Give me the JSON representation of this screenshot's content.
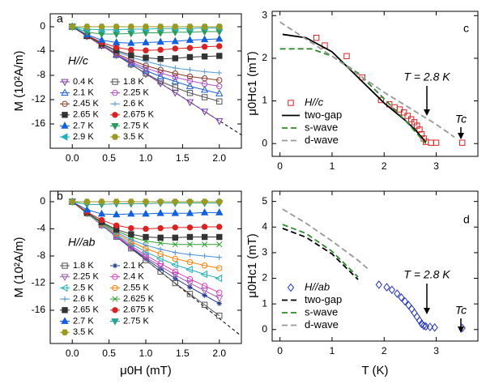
{
  "chart_data": [
    {
      "type": "line",
      "panel_label": "a",
      "ylabel": "M (10²A/m)",
      "annotations": [
        "H//c"
      ],
      "x": [
        0,
        0.2,
        0.4,
        0.6,
        0.8,
        1.0,
        1.2,
        1.4,
        1.6,
        1.8,
        2.0
      ],
      "xlim": [
        -0.3,
        2.3
      ],
      "xticks": [
        {
          "value": 0,
          "label": "0.0"
        },
        0.5,
        {
          "value": 1,
          "label": "1.0"
        },
        1.5,
        {
          "value": 2,
          "label": "2.0"
        }
      ],
      "ylim": [
        -20,
        2.13
      ],
      "yticks": [
        0,
        -4,
        -8,
        -12,
        -16
      ],
      "reference_line": {
        "x": [
          0,
          2.3
        ],
        "values": [
          0,
          -17.8
        ]
      },
      "series": [
        {
          "name": "0.4 K",
          "color": "#7b3fb5",
          "marker": "triangle-down",
          "filled": false,
          "values": [
            0,
            -1.55,
            -3.1,
            -4.65,
            -6.2,
            -7.75,
            -9.3,
            -10.85,
            -12.4,
            -13.95,
            -15.5
          ]
        },
        {
          "name": "1.8 K",
          "color": "#555555",
          "marker": "square",
          "filled": false,
          "values": [
            0,
            -1.55,
            -3.1,
            -4.65,
            -6.2,
            -7.7,
            -9.0,
            -10.0,
            -10.9,
            -11.6,
            -12.3
          ]
        },
        {
          "name": "2.1 K",
          "color": "#2060d0",
          "marker": "triangle-up",
          "filled": false,
          "values": [
            0,
            -1.55,
            -3.1,
            -4.6,
            -6.0,
            -7.2,
            -8.2,
            -9.0,
            -9.8,
            -10.4,
            -11.0
          ]
        },
        {
          "name": "2.25 K",
          "color": "#b050d0",
          "marker": "circle",
          "filled": false,
          "values": [
            0,
            -1.55,
            -3.1,
            -4.55,
            -5.8,
            -6.8,
            -7.6,
            -8.3,
            -8.9,
            -9.4,
            -9.8
          ]
        },
        {
          "name": "2.45 K",
          "color": "#8b3a2a",
          "marker": "circle",
          "filled": false,
          "values": [
            0,
            -1.55,
            -3.05,
            -4.4,
            -5.5,
            -6.4,
            -7.1,
            -7.7,
            -8.2,
            -8.5,
            -8.8
          ]
        },
        {
          "name": "2.6 K",
          "color": "#5a9bd5",
          "marker": "plus",
          "filled": false,
          "values": [
            0,
            -1.5,
            -2.9,
            -4.1,
            -5.0,
            -5.7,
            -6.3,
            -6.8,
            -7.1,
            -7.4,
            -7.6
          ]
        },
        {
          "name": "2.65 K",
          "color": "#333333",
          "marker": "square",
          "filled": true,
          "values": [
            0,
            -1.5,
            -2.8,
            -3.9,
            -4.7,
            -5.1,
            -5.3,
            -5.2,
            -5.0,
            -4.9,
            -4.8
          ]
        },
        {
          "name": "2.675 K",
          "color": "#e02020",
          "marker": "circle",
          "filled": true,
          "values": [
            0,
            -1.4,
            -2.6,
            -3.4,
            -3.8,
            -3.9,
            -3.8,
            -3.6,
            -3.5,
            -3.3,
            -3.2
          ]
        },
        {
          "name": "2.7 K",
          "color": "#1060e0",
          "marker": "triangle-up",
          "filled": true,
          "values": [
            0,
            -1.3,
            -2.2,
            -2.6,
            -2.7,
            -2.6,
            -2.5,
            -2.4,
            -2.2,
            -2.1,
            -2.0
          ]
        },
        {
          "name": "2.75 K",
          "color": "#2a9d5a",
          "marker": "triangle-down",
          "filled": true,
          "values": [
            0,
            -0.9,
            -1.2,
            -1.2,
            -1.1,
            -1.0,
            -1.0,
            -0.9,
            -0.9,
            -0.8,
            -0.8
          ]
        },
        {
          "name": "2.9 K",
          "color": "#20b0c0",
          "marker": "triangle-left",
          "filled": true,
          "values": [
            0,
            -0.4,
            -0.5,
            -0.5,
            -0.4,
            -0.4,
            -0.3,
            -0.3,
            -0.3,
            -0.2,
            -0.2
          ]
        },
        {
          "name": "3.5 K",
          "color": "#9a9a20",
          "marker": "hexagon",
          "filled": true,
          "values": [
            0,
            0,
            0,
            0,
            0,
            0,
            0,
            0,
            0,
            0,
            0
          ]
        }
      ]
    },
    {
      "type": "line",
      "panel_label": "b",
      "ylabel": "M (10²A/m)",
      "xlabel": "μ0H (mT)",
      "annotations": [
        "H//ab"
      ],
      "x": [
        0,
        0.2,
        0.4,
        0.6,
        0.8,
        1.0,
        1.2,
        1.4,
        1.6,
        1.8,
        2.0
      ],
      "xlim": [
        -0.3,
        2.3
      ],
      "xticks": [
        {
          "value": 0,
          "label": "0.0"
        },
        0.5,
        {
          "value": 1,
          "label": "1.0"
        },
        1.5,
        {
          "value": 2,
          "label": "2.0"
        }
      ],
      "ylim": [
        -20.9,
        1.55
      ],
      "yticks": [
        0,
        -4,
        -8,
        -12,
        -16
      ],
      "reference_line": {
        "x": [
          0,
          2.3
        ],
        "values": [
          0,
          -19.8
        ]
      },
      "series": [
        {
          "name": "1.8 K",
          "color": "#555555",
          "marker": "square",
          "filled": false,
          "values": [
            0,
            -1.72,
            -3.44,
            -5.16,
            -6.88,
            -8.6,
            -10.3,
            -12.0,
            -13.6,
            -15.2,
            -16.8
          ]
        },
        {
          "name": "2.1 K",
          "color": "#1f3a93",
          "marker": "star",
          "filled": false,
          "values": [
            0,
            -1.72,
            -3.44,
            -5.15,
            -6.8,
            -8.4,
            -9.9,
            -11.3,
            -12.6,
            -13.8,
            -15.0
          ]
        },
        {
          "name": "2.25 K",
          "color": "#9b59b6",
          "marker": "triangle-down",
          "filled": false,
          "values": [
            0,
            -1.72,
            -3.44,
            -5.1,
            -6.7,
            -8.2,
            -9.5,
            -10.8,
            -12.0,
            -13.1,
            -14.2
          ]
        },
        {
          "name": "2.4 K",
          "color": "#e040c0",
          "marker": "circle",
          "filled": false,
          "values": [
            0,
            -1.72,
            -3.4,
            -5.0,
            -6.5,
            -7.9,
            -9.1,
            -10.3,
            -11.4,
            -12.4,
            -13.4
          ]
        },
        {
          "name": "2.5 K",
          "color": "#20b0c0",
          "marker": "triangle-left",
          "filled": false,
          "values": [
            0,
            -1.72,
            -3.4,
            -4.9,
            -6.2,
            -7.4,
            -8.4,
            -9.3,
            -10.0,
            -10.7,
            -11.3
          ]
        },
        {
          "name": "2.55 K",
          "color": "#ff7f00",
          "marker": "circle",
          "filled": false,
          "values": [
            0,
            -1.7,
            -3.3,
            -4.7,
            -5.9,
            -6.9,
            -7.7,
            -8.4,
            -8.9,
            -9.4,
            -9.8
          ]
        },
        {
          "name": "2.6 K",
          "color": "#4a90d9",
          "marker": "plus",
          "filled": false,
          "values": [
            0,
            -1.7,
            -3.2,
            -4.5,
            -5.6,
            -6.4,
            -7.0,
            -7.5,
            -7.8,
            -8.0,
            -8.2
          ]
        },
        {
          "name": "2.625 K",
          "color": "#2ca02c",
          "marker": "x",
          "filled": false,
          "values": [
            0,
            -1.65,
            -3.1,
            -4.3,
            -5.2,
            -5.8,
            -6.1,
            -6.3,
            -6.3,
            -6.3,
            -6.3
          ]
        },
        {
          "name": "2.65 K",
          "color": "#333333",
          "marker": "square",
          "filled": true,
          "values": [
            0,
            -1.6,
            -3.0,
            -4.1,
            -4.8,
            -5.2,
            -5.3,
            -5.3,
            -5.2,
            -5.2,
            -5.2
          ]
        },
        {
          "name": "2.675 K",
          "color": "#e02020",
          "marker": "circle",
          "filled": true,
          "values": [
            0,
            -1.5,
            -2.7,
            -3.5,
            -3.9,
            -4.0,
            -3.9,
            -3.8,
            -3.8,
            -3.7,
            -3.7
          ]
        },
        {
          "name": "2.7 K",
          "color": "#1060e0",
          "marker": "triangle-up",
          "filled": true,
          "values": [
            0,
            -1.2,
            -1.8,
            -1.9,
            -1.8,
            -1.8,
            -1.7,
            -1.7,
            -1.7,
            -1.6,
            -1.6
          ]
        },
        {
          "name": "2.75 K",
          "color": "#2aa198",
          "marker": "triangle-down",
          "filled": true,
          "values": [
            0,
            -0.4,
            -0.4,
            -0.3,
            -0.3,
            -0.3,
            -0.2,
            -0.2,
            -0.2,
            -0.2,
            -0.2
          ]
        },
        {
          "name": "3.5 K",
          "color": "#9a9a20",
          "marker": "hexagon",
          "filled": true,
          "values": [
            0,
            0,
            0,
            0,
            0,
            0,
            0,
            0,
            0,
            0,
            0
          ]
        }
      ]
    },
    {
      "type": "scatter",
      "panel_label": "c",
      "ylabel": "μ0Hc1 (mT)",
      "annotations": [
        "T = 2.8 K",
        "Tc"
      ],
      "xlim": [
        -0.15,
        3.8
      ],
      "xticks": [
        0,
        1,
        2,
        3
      ],
      "ylim": [
        -0.3,
        3.1
      ],
      "yticks": [
        0,
        1,
        2,
        3
      ],
      "series": [
        {
          "name": "H//c",
          "color": "#e02020",
          "marker": "square",
          "filled": false,
          "x": [
            0.7,
            0.86,
            1.28,
            1.58,
            1.94,
            2.1,
            2.2,
            2.3,
            2.38,
            2.45,
            2.52,
            2.58,
            2.63,
            2.68,
            2.72,
            2.76,
            2.8,
            2.9,
            3.0,
            3.5
          ],
          "values": [
            2.48,
            2.3,
            2.05,
            1.55,
            1.02,
            0.92,
            0.85,
            0.8,
            0.73,
            0.65,
            0.57,
            0.5,
            0.42,
            0.33,
            0.22,
            0.12,
            0.04,
            0.02,
            0.02,
            0.02
          ]
        },
        {
          "name": "two-gap",
          "color": "#000000",
          "line": "solid",
          "x": [
            0.05,
            0.5,
            1.0,
            1.5,
            2.0,
            2.4,
            2.6,
            2.8
          ],
          "values": [
            2.56,
            2.48,
            2.15,
            1.55,
            0.95,
            0.55,
            0.32,
            0.03
          ]
        },
        {
          "name": "s-wave",
          "color": "#2e8b2e",
          "line": "dashed",
          "x": [
            0,
            0.6,
            1.0,
            1.5,
            2.0,
            2.4,
            2.8
          ],
          "values": [
            2.22,
            2.22,
            2.05,
            1.65,
            1.05,
            0.55,
            0.0
          ]
        },
        {
          "name": "d-wave",
          "color": "#999999",
          "line": "dashed",
          "x": [
            0,
            1,
            2,
            3,
            3.35
          ],
          "values": [
            2.85,
            2.05,
            1.2,
            0.45,
            0.15
          ]
        }
      ]
    },
    {
      "type": "scatter",
      "panel_label": "d",
      "ylabel": "μ0Hc1 (mT)",
      "xlabel": "T (K)",
      "annotations": [
        "T = 2.8 K",
        "Tc"
      ],
      "xlim": [
        -0.15,
        3.8
      ],
      "xticks": [
        0,
        1,
        2,
        3
      ],
      "ylim": [
        -0.45,
        5.4
      ],
      "yticks": [
        0,
        1,
        2,
        3,
        4,
        5
      ],
      "series": [
        {
          "name": "H//ab",
          "color": "#2030d0",
          "marker": "diamond",
          "filled": false,
          "x": [
            1.9,
            2.05,
            2.15,
            2.25,
            2.33,
            2.4,
            2.47,
            2.53,
            2.58,
            2.63,
            2.68,
            2.72,
            2.76,
            2.8,
            2.88,
            2.97,
            3.5
          ],
          "values": [
            1.75,
            1.65,
            1.55,
            1.4,
            1.25,
            1.1,
            0.95,
            0.8,
            0.65,
            0.5,
            0.35,
            0.22,
            0.15,
            0.12,
            0.1,
            0.08,
            0.06
          ]
        },
        {
          "name": "two-gap",
          "color": "#000000",
          "line": "dashed",
          "x": [
            0.05,
            0.5,
            1.0,
            1.5
          ],
          "values": [
            3.95,
            3.6,
            2.95,
            1.95
          ]
        },
        {
          "name": "s-wave",
          "color": "#2e8b2e",
          "line": "dashed",
          "x": [
            0.05,
            0.5,
            1.0,
            1.5
          ],
          "values": [
            4.1,
            3.75,
            3.05,
            2.05
          ]
        },
        {
          "name": "d-wave",
          "color": "#999999",
          "line": "dashed",
          "x": [
            0.05,
            0.5,
            1.0,
            1.5,
            1.7
          ],
          "values": [
            4.7,
            4.15,
            3.45,
            2.7,
            2.35
          ]
        }
      ]
    }
  ]
}
